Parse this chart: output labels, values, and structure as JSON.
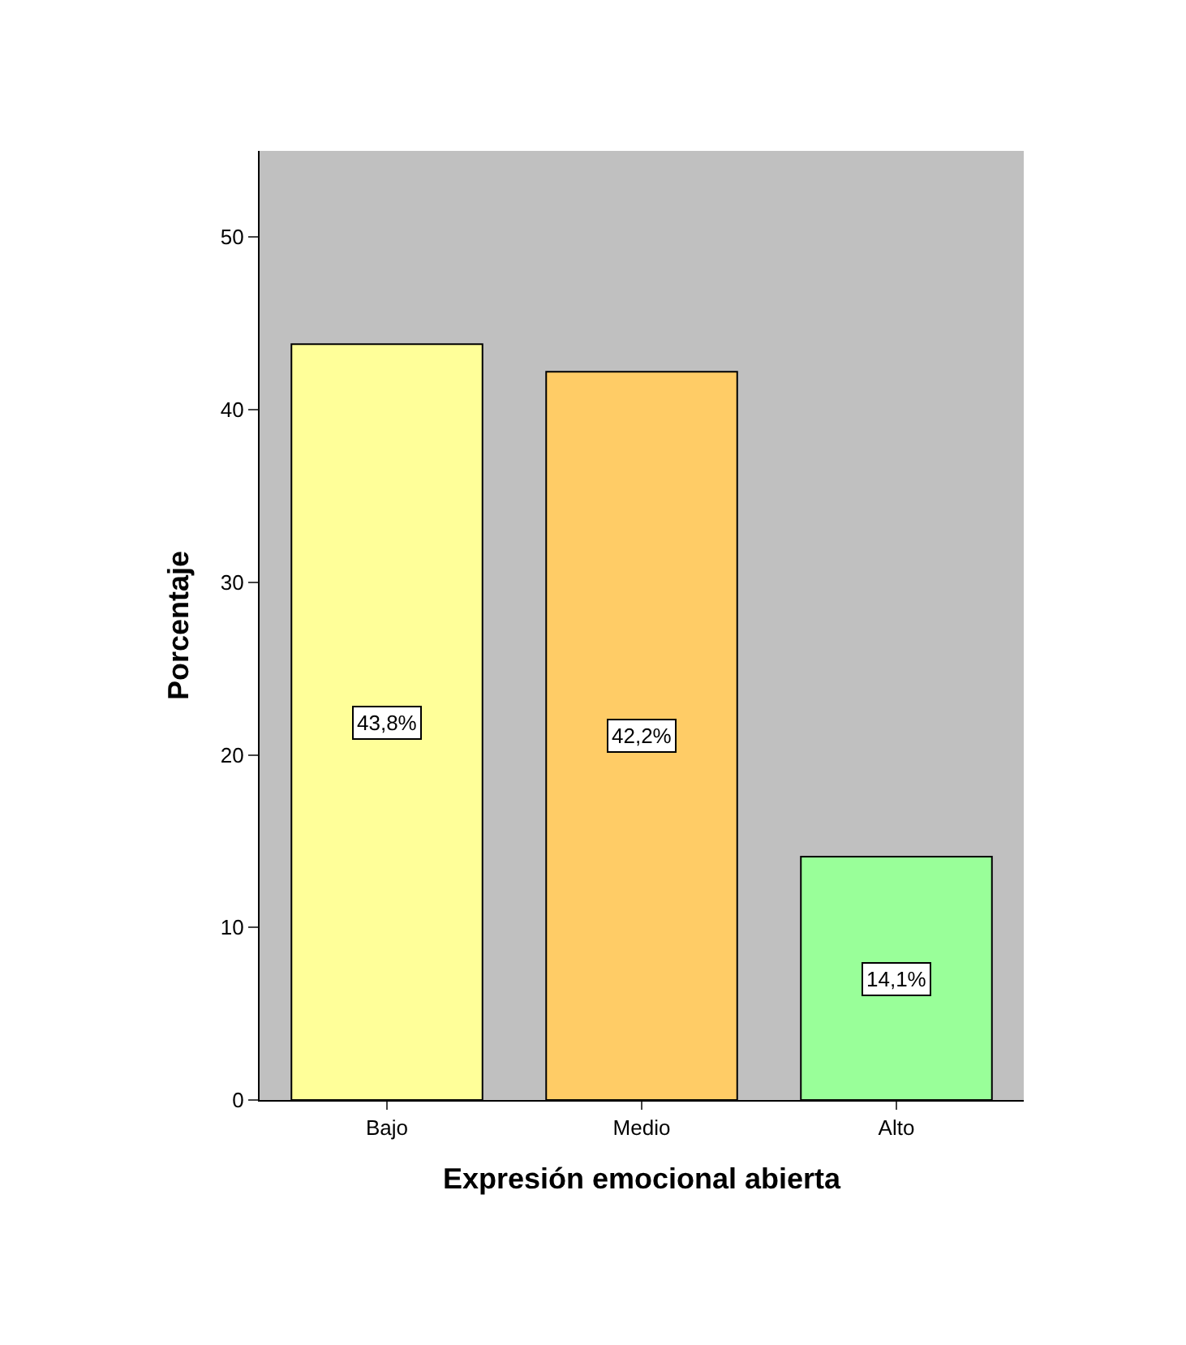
{
  "chart_data": {
    "type": "bar",
    "xlabel": "Expresión emocional abierta",
    "ylabel": "Porcentaje",
    "categories": [
      "Bajo",
      "Medio",
      "Alto"
    ],
    "values": [
      43.8,
      42.2,
      14.1
    ],
    "colors": [
      "#ffff99",
      "#ffcc66",
      "#99ff99"
    ],
    "value_labels": [
      "43,8%",
      "42,2%",
      "14,1%"
    ],
    "ylim": [
      0,
      55
    ],
    "yticks": [
      0,
      10,
      20,
      30,
      40,
      50
    ],
    "grid": false
  }
}
